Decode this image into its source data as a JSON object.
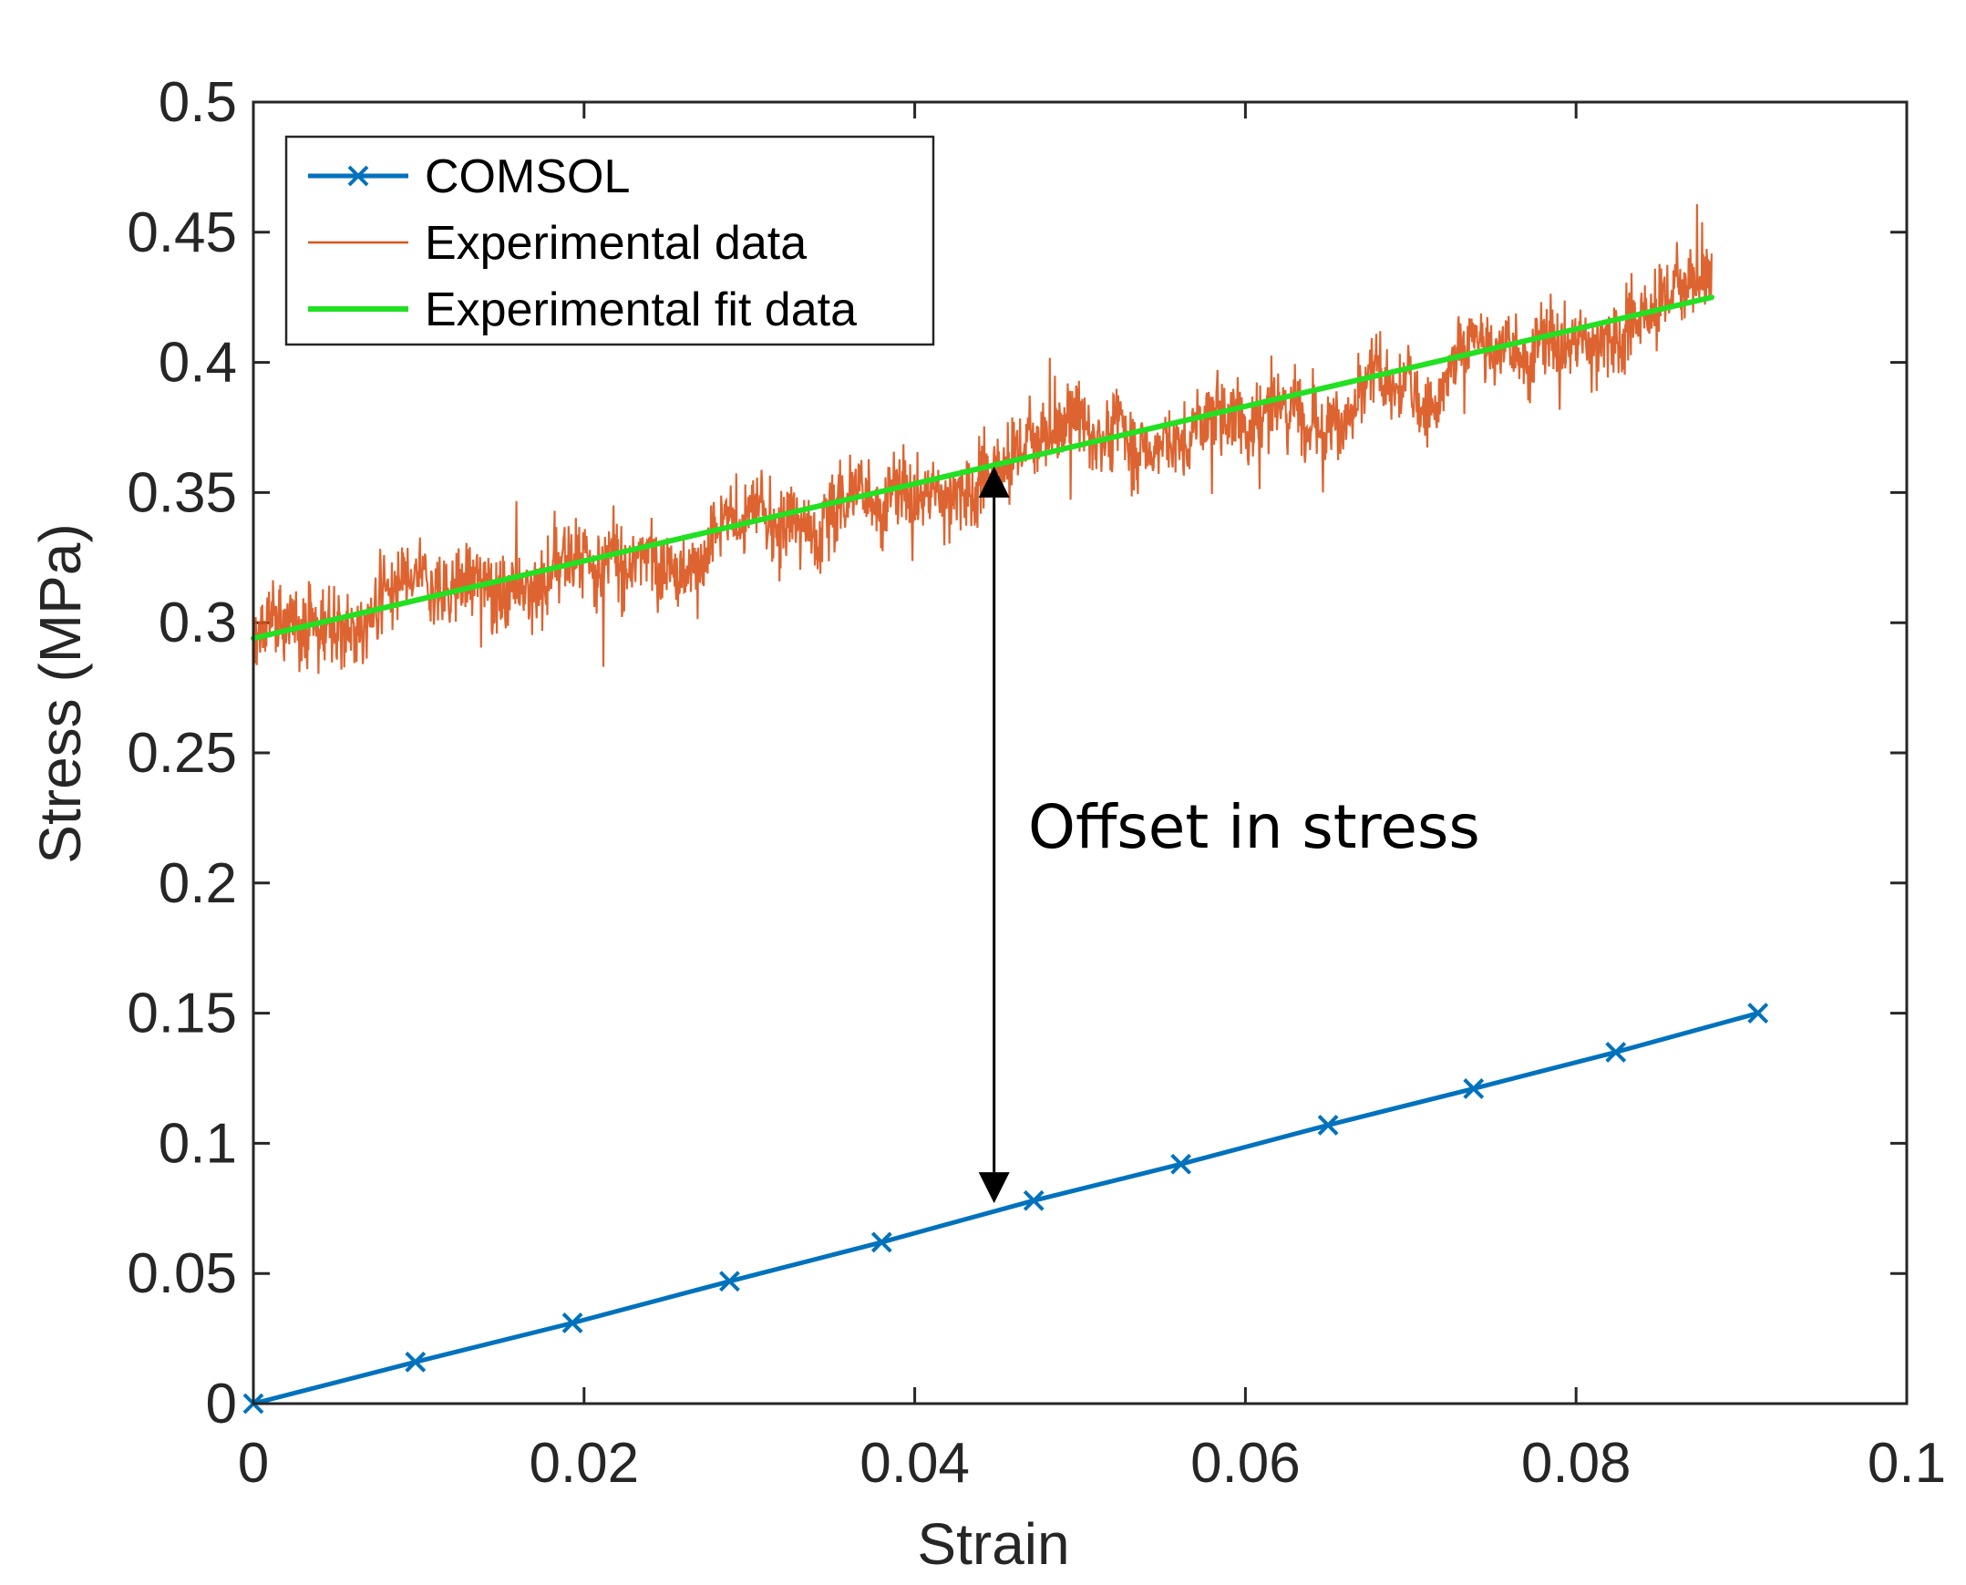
{
  "chart_data": {
    "type": "line",
    "title": "",
    "xlabel": "Strain",
    "ylabel": "Stress (MPa)",
    "xlim": [
      0,
      0.1
    ],
    "ylim": [
      0,
      0.5
    ],
    "x_ticks": [
      0,
      0.02,
      0.04,
      0.06,
      0.08,
      0.1
    ],
    "x_tick_labels": [
      "0",
      "0.02",
      "0.04",
      "0.06",
      "0.08",
      "0.1"
    ],
    "y_ticks": [
      0,
      0.05,
      0.1,
      0.15,
      0.2,
      0.25,
      0.3,
      0.35,
      0.4,
      0.45,
      0.5
    ],
    "y_tick_labels": [
      "0",
      "0.05",
      "0.1",
      "0.15",
      "0.2",
      "0.25",
      "0.3",
      "0.35",
      "0.4",
      "0.45",
      "0.5"
    ],
    "grid": false,
    "legend_position": "top-left",
    "series": [
      {
        "name": "COMSOL",
        "color": "#0072BD",
        "marker": "x",
        "x": [
          0,
          0.0098,
          0.0193,
          0.0288,
          0.038,
          0.0472,
          0.0561,
          0.065,
          0.0738,
          0.0824,
          0.091
        ],
        "y": [
          0,
          0.016,
          0.031,
          0.047,
          0.062,
          0.078,
          0.092,
          0.107,
          0.121,
          0.135,
          0.15
        ]
      },
      {
        "name": "Experimental data",
        "color": "#D95319",
        "noisy": true,
        "x_range": [
          0,
          0.0882
        ],
        "trend": [
          0.292,
          0.425
        ],
        "noise_amplitude": 0.025,
        "y_range_observed": [
          0.245,
          0.48
        ]
      },
      {
        "name": "Experimental fit data",
        "color": "#22E022",
        "x": [
          0,
          0.0882
        ],
        "y": [
          0.294,
          0.425
        ]
      }
    ],
    "annotations": [
      {
        "text": "Offset in stress",
        "arrow_x": 0.0448,
        "arrow_from_y": 0.36,
        "arrow_to_y": 0.077
      }
    ]
  }
}
